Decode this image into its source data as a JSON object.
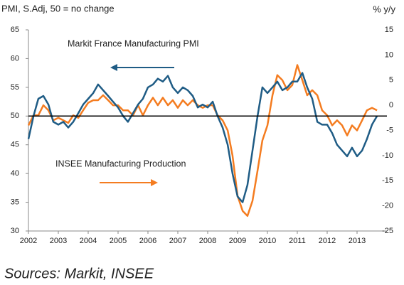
{
  "chart_data": {
    "type": "line",
    "title": "PMI, S.Adj, 50 = no change",
    "y2_label": "% y/y",
    "annotations": [
      "Markit France Manufacturing  PMI",
      "INSEE Manufacturing  Production"
    ],
    "source": "Sources: Markit, INSEE",
    "x": [
      2002,
      2002.17,
      2002.33,
      2002.5,
      2002.67,
      2002.83,
      2003,
      2003.17,
      2003.33,
      2003.5,
      2003.67,
      2003.83,
      2004,
      2004.17,
      2004.33,
      2004.5,
      2004.67,
      2004.83,
      2005,
      2005.17,
      2005.33,
      2005.5,
      2005.67,
      2005.83,
      2006,
      2006.17,
      2006.33,
      2006.5,
      2006.67,
      2006.83,
      2007,
      2007.17,
      2007.33,
      2007.5,
      2007.67,
      2007.83,
      2008,
      2008.17,
      2008.33,
      2008.5,
      2008.67,
      2008.83,
      2009,
      2009.17,
      2009.33,
      2009.5,
      2009.67,
      2009.83,
      2010,
      2010.17,
      2010.33,
      2010.5,
      2010.67,
      2010.83,
      2011,
      2011.17,
      2011.33,
      2011.5,
      2011.67,
      2011.83,
      2012,
      2012.17,
      2012.33,
      2012.5,
      2012.67,
      2012.83,
      2013,
      2013.17,
      2013.33,
      2013.5,
      2013.67
    ],
    "series": [
      {
        "name": "Markit France Manufacturing PMI",
        "color": "#1f5c85",
        "axis": "y",
        "values": [
          46,
          50,
          53,
          53.5,
          52,
          49,
          48.5,
          49,
          48,
          49,
          50.5,
          52,
          53,
          54,
          55.5,
          54.5,
          53.5,
          52.5,
          51.5,
          50,
          49,
          50.5,
          52,
          53,
          55,
          55.5,
          56.5,
          56,
          57,
          55,
          54,
          55,
          54.5,
          53.5,
          51.5,
          52,
          51.5,
          52.5,
          50,
          48,
          45,
          40,
          36,
          35,
          38,
          44,
          50,
          55,
          54,
          55,
          56,
          54.5,
          55,
          56,
          56,
          57.5,
          55,
          53,
          49,
          48.5,
          48.5,
          47,
          45,
          44,
          43,
          44.5,
          43,
          44,
          46,
          48.5,
          50
        ]
      },
      {
        "name": "INSEE Manufacturing Production",
        "color": "#f47c20",
        "axis": "y2",
        "values": [
          -4,
          -2,
          -2,
          0,
          -1,
          -3,
          -2.5,
          -3,
          -3.5,
          -2,
          -2.5,
          -1,
          0.5,
          1,
          1,
          2,
          1,
          0,
          0,
          -1,
          -1,
          -2,
          0,
          -2,
          0,
          1.5,
          0,
          1.5,
          0,
          1,
          -0.5,
          1,
          0,
          1,
          0,
          -0.5,
          0,
          0,
          -2,
          -3,
          -5,
          -10,
          -18,
          -21,
          -22,
          -19,
          -13,
          -7,
          -4,
          2,
          6,
          5,
          3,
          4,
          8,
          5,
          2,
          3,
          2,
          -1,
          -2,
          -4,
          -3,
          -4,
          -6,
          -4,
          -5,
          -3,
          -1,
          -0.5,
          -1
        ]
      }
    ],
    "xlim": [
      2002,
      2014
    ],
    "xticks": [
      2002,
      2003,
      2004,
      2005,
      2006,
      2007,
      2008,
      2009,
      2010,
      2011,
      2012,
      2013
    ],
    "ylim": [
      30,
      65
    ],
    "yticks": [
      30,
      35,
      40,
      45,
      50,
      55,
      60,
      65
    ],
    "y2lim": [
      -25,
      15
    ],
    "y2ticks": [
      -25,
      -20,
      -15,
      -10,
      -5,
      0,
      5,
      10,
      15
    ],
    "reference_line": 50,
    "grid": false
  }
}
